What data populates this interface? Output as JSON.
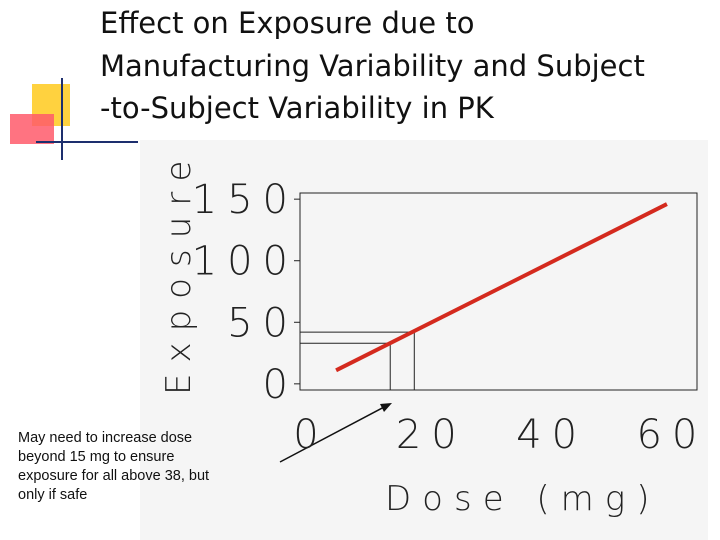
{
  "title_lines": [
    "Effect on Exposure due to",
    "Manufacturing Variability and Subject",
    "-to-Subject Variability in PK"
  ],
  "chart_data": {
    "type": "line",
    "x": [
      5,
      60
    ],
    "series": [
      {
        "color": "#d42a1e",
        "values": [
          11,
          146
        ]
      }
    ],
    "reference_points": {
      "x": [
        14,
        18
      ],
      "y": [
        33,
        42
      ]
    },
    "xlim": [
      -1,
      65
    ],
    "ylim": [
      -5,
      155
    ],
    "xticks": [
      0,
      20,
      40,
      60
    ],
    "yticks": [
      0,
      50,
      100,
      150
    ],
    "xlabel": "Dose (mg)",
    "ylabel": "Exposure",
    "annotation_lines": [
      "May need to increase dose",
      "beyond 15 mg to ensure",
      "exposure for all above 38, but",
      "only if safe"
    ]
  }
}
